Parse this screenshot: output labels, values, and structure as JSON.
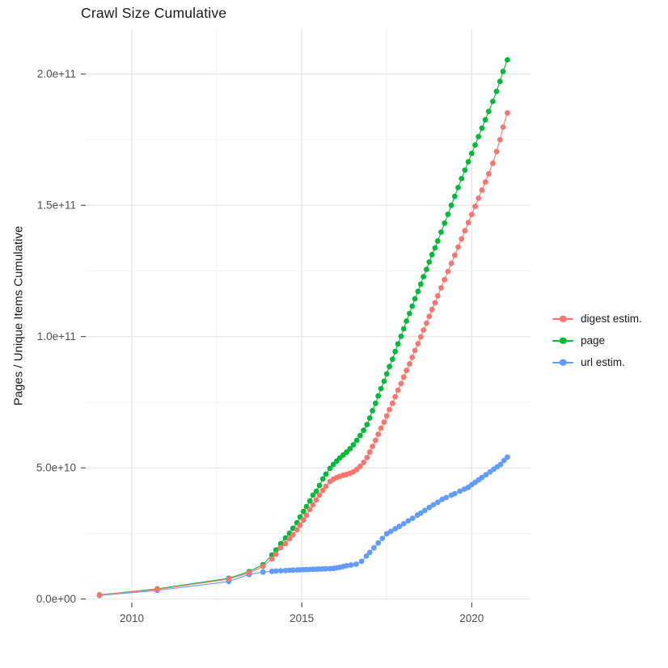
{
  "title": "Crawl Size Cumulative",
  "axes": {
    "y_label": "Pages / Unique Items Cumulative",
    "x_tick_labels": [
      "2010",
      "2015",
      "2020"
    ],
    "y_tick_labels": [
      "0.0e+00",
      "5.0e+10",
      "1.0e+11",
      "1.5e+11",
      "2.0e+11"
    ]
  },
  "colors": {
    "background": "#ffffff",
    "grid_major": "#e4e4e4",
    "grid_minor": "#f2f2f2",
    "tick_mark": "#333333",
    "tick_label": "#4d4d4d",
    "text": "#1a1a1a"
  },
  "chart_data": {
    "type": "scatter",
    "title": "Crawl Size Cumulative",
    "xlabel": "",
    "ylabel": "Pages / Unique Items Cumulative",
    "x_unit": "year",
    "y_unit_note": "point y-values stored in billions (1e9); axis shows scientific notation",
    "xlim": [
      2008.65,
      2021.75
    ],
    "ylim_billions": [
      -1,
      218
    ],
    "x_major_ticks": [
      2010,
      2015,
      2020
    ],
    "x_minor_ticks": [
      2012.5,
      2017.5
    ],
    "y_major_ticks_billions": [
      0,
      50,
      100,
      150,
      200
    ],
    "y_minor_ticks_billions": [
      25,
      75,
      125,
      175
    ],
    "grid": "major and minor light gray on white",
    "legend_position": "right-center",
    "marker": "filled circle with thin connecting line",
    "series": [
      {
        "name": "digest estim.",
        "color": "#F8766D",
        "points": [
          [
            2009.05,
            1.6
          ],
          [
            2010.75,
            3.7
          ],
          [
            2012.85,
            7.6
          ],
          [
            2013.45,
            10.0
          ],
          [
            2013.86,
            12.5
          ],
          [
            2014.12,
            15.3
          ],
          [
            2014.24,
            17.1
          ],
          [
            2014.38,
            19.6
          ],
          [
            2014.52,
            21.1
          ],
          [
            2014.64,
            23.0
          ],
          [
            2014.74,
            24.5
          ],
          [
            2014.86,
            26.4
          ],
          [
            2014.95,
            28.2
          ],
          [
            2015.05,
            30.1
          ],
          [
            2015.14,
            31.9
          ],
          [
            2015.24,
            34.1
          ],
          [
            2015.33,
            35.9
          ],
          [
            2015.43,
            37.8
          ],
          [
            2015.52,
            39.6
          ],
          [
            2015.62,
            41.4
          ],
          [
            2015.71,
            43.0
          ],
          [
            2015.83,
            44.8
          ],
          [
            2015.93,
            45.7
          ],
          [
            2016.03,
            46.3
          ],
          [
            2016.12,
            46.8
          ],
          [
            2016.22,
            47.2
          ],
          [
            2016.32,
            47.5
          ],
          [
            2016.42,
            47.9
          ],
          [
            2016.52,
            48.5
          ],
          [
            2016.62,
            49.4
          ],
          [
            2016.72,
            50.6
          ],
          [
            2016.82,
            52.1
          ],
          [
            2016.92,
            53.9
          ],
          [
            2017.0,
            56.0
          ],
          [
            2017.08,
            58.2
          ],
          [
            2017.17,
            60.5
          ],
          [
            2017.25,
            62.8
          ],
          [
            2017.33,
            65.1
          ],
          [
            2017.42,
            67.4
          ],
          [
            2017.5,
            69.8
          ],
          [
            2017.58,
            72.2
          ],
          [
            2017.67,
            74.6
          ],
          [
            2017.75,
            77.1
          ],
          [
            2017.83,
            79.6
          ],
          [
            2017.92,
            82.1
          ],
          [
            2018.0,
            84.6
          ],
          [
            2018.08,
            87.1
          ],
          [
            2018.17,
            89.6
          ],
          [
            2018.25,
            92.1
          ],
          [
            2018.33,
            94.7
          ],
          [
            2018.42,
            97.3
          ],
          [
            2018.5,
            99.9
          ],
          [
            2018.58,
            102.5
          ],
          [
            2018.67,
            105.1
          ],
          [
            2018.75,
            107.7
          ],
          [
            2018.83,
            110.3
          ],
          [
            2018.92,
            112.9
          ],
          [
            2019.0,
            115.5
          ],
          [
            2019.1,
            118.6
          ],
          [
            2019.2,
            121.7
          ],
          [
            2019.3,
            124.8
          ],
          [
            2019.4,
            127.9
          ],
          [
            2019.5,
            131.0
          ],
          [
            2019.6,
            134.1
          ],
          [
            2019.7,
            137.2
          ],
          [
            2019.8,
            140.3
          ],
          [
            2019.9,
            143.4
          ],
          [
            2020.0,
            146.5
          ],
          [
            2020.1,
            149.6
          ],
          [
            2020.2,
            152.7
          ],
          [
            2020.3,
            155.8
          ],
          [
            2020.4,
            158.9
          ],
          [
            2020.5,
            162.0
          ],
          [
            2020.62,
            166.0
          ],
          [
            2020.73,
            170.5
          ],
          [
            2020.83,
            175.0
          ],
          [
            2020.92,
            179.8
          ],
          [
            2021.05,
            185.2
          ]
        ]
      },
      {
        "name": "page",
        "color": "#00BA38",
        "points": [
          [
            2009.05,
            1.6
          ],
          [
            2010.75,
            3.9
          ],
          [
            2012.85,
            7.9
          ],
          [
            2013.45,
            10.5
          ],
          [
            2013.86,
            13.1
          ],
          [
            2014.12,
            16.8
          ],
          [
            2014.24,
            18.7
          ],
          [
            2014.38,
            21.1
          ],
          [
            2014.52,
            23.3
          ],
          [
            2014.64,
            25.1
          ],
          [
            2014.74,
            27.0
          ],
          [
            2014.86,
            29.1
          ],
          [
            2014.95,
            31.3
          ],
          [
            2015.05,
            33.4
          ],
          [
            2015.14,
            35.3
          ],
          [
            2015.24,
            37.4
          ],
          [
            2015.33,
            39.6
          ],
          [
            2015.43,
            41.1
          ],
          [
            2015.52,
            43.3
          ],
          [
            2015.62,
            45.8
          ],
          [
            2015.71,
            47.6
          ],
          [
            2015.83,
            49.8
          ],
          [
            2015.93,
            51.3
          ],
          [
            2016.03,
            52.6
          ],
          [
            2016.12,
            53.8
          ],
          [
            2016.22,
            54.9
          ],
          [
            2016.32,
            56.0
          ],
          [
            2016.42,
            57.3
          ],
          [
            2016.52,
            58.8
          ],
          [
            2016.62,
            60.5
          ],
          [
            2016.72,
            62.3
          ],
          [
            2016.82,
            64.3
          ],
          [
            2016.92,
            66.5
          ],
          [
            2017.0,
            69.0
          ],
          [
            2017.08,
            71.8
          ],
          [
            2017.17,
            74.6
          ],
          [
            2017.25,
            77.4
          ],
          [
            2017.33,
            80.2
          ],
          [
            2017.42,
            83.0
          ],
          [
            2017.5,
            85.8
          ],
          [
            2017.58,
            88.6
          ],
          [
            2017.67,
            91.4
          ],
          [
            2017.75,
            94.3
          ],
          [
            2017.83,
            97.2
          ],
          [
            2017.92,
            100.1
          ],
          [
            2018.0,
            103.0
          ],
          [
            2018.08,
            105.9
          ],
          [
            2018.17,
            108.8
          ],
          [
            2018.25,
            111.6
          ],
          [
            2018.33,
            114.4
          ],
          [
            2018.42,
            117.2
          ],
          [
            2018.5,
            120.0
          ],
          [
            2018.58,
            122.8
          ],
          [
            2018.67,
            125.6
          ],
          [
            2018.75,
            128.4
          ],
          [
            2018.83,
            131.2
          ],
          [
            2018.92,
            133.8
          ],
          [
            2019.0,
            136.4
          ],
          [
            2019.1,
            139.8
          ],
          [
            2019.2,
            143.2
          ],
          [
            2019.3,
            146.6
          ],
          [
            2019.4,
            150.0
          ],
          [
            2019.5,
            153.4
          ],
          [
            2019.6,
            156.8
          ],
          [
            2019.7,
            160.2
          ],
          [
            2019.8,
            163.4
          ],
          [
            2019.9,
            166.6
          ],
          [
            2020.0,
            169.8
          ],
          [
            2020.1,
            173.0
          ],
          [
            2020.2,
            176.2
          ],
          [
            2020.3,
            179.4
          ],
          [
            2020.4,
            182.6
          ],
          [
            2020.5,
            185.8
          ],
          [
            2020.62,
            189.6
          ],
          [
            2020.73,
            193.4
          ],
          [
            2020.83,
            197.2
          ],
          [
            2020.92,
            201.0
          ],
          [
            2021.05,
            205.4
          ]
        ]
      },
      {
        "name": "url estim.",
        "color": "#619CFF",
        "points": [
          [
            2009.05,
            1.4
          ],
          [
            2010.75,
            3.3
          ],
          [
            2012.85,
            6.7
          ],
          [
            2013.45,
            9.4
          ],
          [
            2013.86,
            10.3
          ],
          [
            2014.12,
            10.6
          ],
          [
            2014.24,
            10.7
          ],
          [
            2014.38,
            10.8
          ],
          [
            2014.52,
            10.9
          ],
          [
            2014.64,
            11.0
          ],
          [
            2014.74,
            11.05
          ],
          [
            2014.86,
            11.1
          ],
          [
            2014.95,
            11.15
          ],
          [
            2015.05,
            11.2
          ],
          [
            2015.14,
            11.25
          ],
          [
            2015.24,
            11.3
          ],
          [
            2015.33,
            11.35
          ],
          [
            2015.43,
            11.4
          ],
          [
            2015.52,
            11.45
          ],
          [
            2015.62,
            11.5
          ],
          [
            2015.71,
            11.55
          ],
          [
            2015.83,
            11.6
          ],
          [
            2015.93,
            11.7
          ],
          [
            2016.03,
            11.9
          ],
          [
            2016.12,
            12.1
          ],
          [
            2016.22,
            12.4
          ],
          [
            2016.32,
            12.7
          ],
          [
            2016.45,
            13.0
          ],
          [
            2016.6,
            13.3
          ],
          [
            2016.76,
            14.4
          ],
          [
            2016.9,
            16.4
          ],
          [
            2017.0,
            17.8
          ],
          [
            2017.12,
            19.5
          ],
          [
            2017.25,
            21.4
          ],
          [
            2017.37,
            23.1
          ],
          [
            2017.5,
            24.9
          ],
          [
            2017.62,
            25.8
          ],
          [
            2017.75,
            26.8
          ],
          [
            2017.87,
            27.7
          ],
          [
            2018.0,
            28.7
          ],
          [
            2018.13,
            29.8
          ],
          [
            2018.26,
            30.8
          ],
          [
            2018.4,
            32.0
          ],
          [
            2018.5,
            32.8
          ],
          [
            2018.62,
            33.8
          ],
          [
            2018.75,
            34.9
          ],
          [
            2018.87,
            35.9
          ],
          [
            2019.0,
            36.9
          ],
          [
            2019.13,
            38.0
          ],
          [
            2019.25,
            38.7
          ],
          [
            2019.4,
            39.6
          ],
          [
            2019.5,
            40.2
          ],
          [
            2019.65,
            41.1
          ],
          [
            2019.78,
            41.9
          ],
          [
            2019.9,
            42.6
          ],
          [
            2020.0,
            43.6
          ],
          [
            2020.1,
            44.5
          ],
          [
            2020.2,
            45.4
          ],
          [
            2020.3,
            46.3
          ],
          [
            2020.42,
            47.4
          ],
          [
            2020.54,
            48.5
          ],
          [
            2020.65,
            49.5
          ],
          [
            2020.75,
            50.4
          ],
          [
            2020.85,
            51.3
          ],
          [
            2020.95,
            52.8
          ],
          [
            2021.05,
            54.1
          ]
        ]
      }
    ]
  }
}
